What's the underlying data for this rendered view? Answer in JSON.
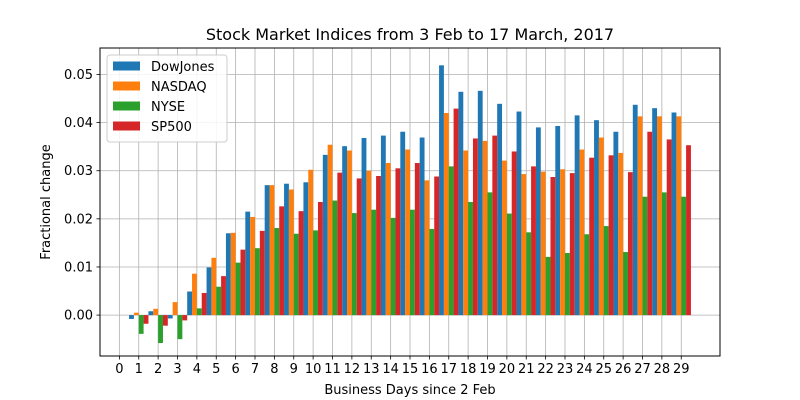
{
  "chart_data": {
    "type": "bar",
    "title": "Stock Market Indices from 3 Feb to 17 March, 2017",
    "xlabel": "Business Days since 2 Feb",
    "ylabel": "Fractional change",
    "xlim": [
      -1,
      31
    ],
    "ylim": [
      -0.0085,
      0.0555
    ],
    "grid": true,
    "legend_position": "top-left",
    "x_ticks": [
      "0",
      "1",
      "2",
      "3",
      "4",
      "5",
      "6",
      "7",
      "8",
      "9",
      "10",
      "11",
      "12",
      "13",
      "14",
      "15",
      "16",
      "17",
      "18",
      "19",
      "20",
      "21",
      "22",
      "23",
      "24",
      "25",
      "26",
      "27",
      "28",
      "29"
    ],
    "y_ticks": [
      "0.00",
      "0.01",
      "0.02",
      "0.03",
      "0.04",
      "0.05"
    ],
    "x": [
      1,
      2,
      3,
      4,
      5,
      6,
      7,
      8,
      9,
      10,
      11,
      12,
      13,
      14,
      15,
      16,
      17,
      18,
      19,
      20,
      21,
      22,
      23,
      24,
      25,
      26,
      27,
      28,
      29,
      30
    ],
    "series": [
      {
        "name": "DowJones",
        "color": "#1f77b4",
        "values": [
          -0.0008,
          0.0008,
          -0.0007,
          0.0049,
          0.0099,
          0.017,
          0.0215,
          0.027,
          0.0273,
          0.0276,
          0.0333,
          0.0351,
          0.0368,
          0.0373,
          0.0381,
          0.0369,
          0.0519,
          0.0464,
          0.0466,
          0.0439,
          0.0423,
          0.039,
          0.0393,
          0.0415,
          0.0405,
          0.0381,
          0.0437,
          0.043,
          0.0421,
          0.0
        ]
      },
      {
        "name": "NASDAQ",
        "color": "#ff7f0e",
        "values": [
          0.0005,
          0.0013,
          0.0027,
          0.0086,
          0.0119,
          0.0171,
          0.0204,
          0.027,
          0.0261,
          0.0302,
          0.0354,
          0.0342,
          0.03,
          0.0316,
          0.0344,
          0.028,
          0.042,
          0.0342,
          0.0362,
          0.0321,
          0.0293,
          0.0298,
          0.0303,
          0.0344,
          0.0369,
          0.0337,
          0.0413,
          0.0413,
          0.0413,
          0.0
        ]
      },
      {
        "name": "NYSE",
        "color": "#2ca02c",
        "values": [
          -0.0039,
          -0.0058,
          -0.005,
          0.0014,
          0.0059,
          0.0109,
          0.0139,
          0.0181,
          0.0169,
          0.0176,
          0.0238,
          0.0212,
          0.0219,
          0.0202,
          0.0219,
          0.0179,
          0.0309,
          0.0235,
          0.0255,
          0.0211,
          0.0172,
          0.0121,
          0.0129,
          0.0168,
          0.0185,
          0.0131,
          0.0246,
          0.0255,
          0.0246,
          0.0
        ]
      },
      {
        "name": "SP500",
        "color": "#d62728",
        "values": [
          -0.0018,
          -0.0022,
          -0.0011,
          0.0046,
          0.0081,
          0.0136,
          0.0175,
          0.0226,
          0.0216,
          0.0235,
          0.0296,
          0.0284,
          0.0289,
          0.0305,
          0.0316,
          0.0288,
          0.0429,
          0.0367,
          0.0373,
          0.034,
          0.0309,
          0.0287,
          0.0295,
          0.0327,
          0.0332,
          0.0297,
          0.0381,
          0.0365,
          0.0353,
          0.0
        ]
      }
    ]
  }
}
